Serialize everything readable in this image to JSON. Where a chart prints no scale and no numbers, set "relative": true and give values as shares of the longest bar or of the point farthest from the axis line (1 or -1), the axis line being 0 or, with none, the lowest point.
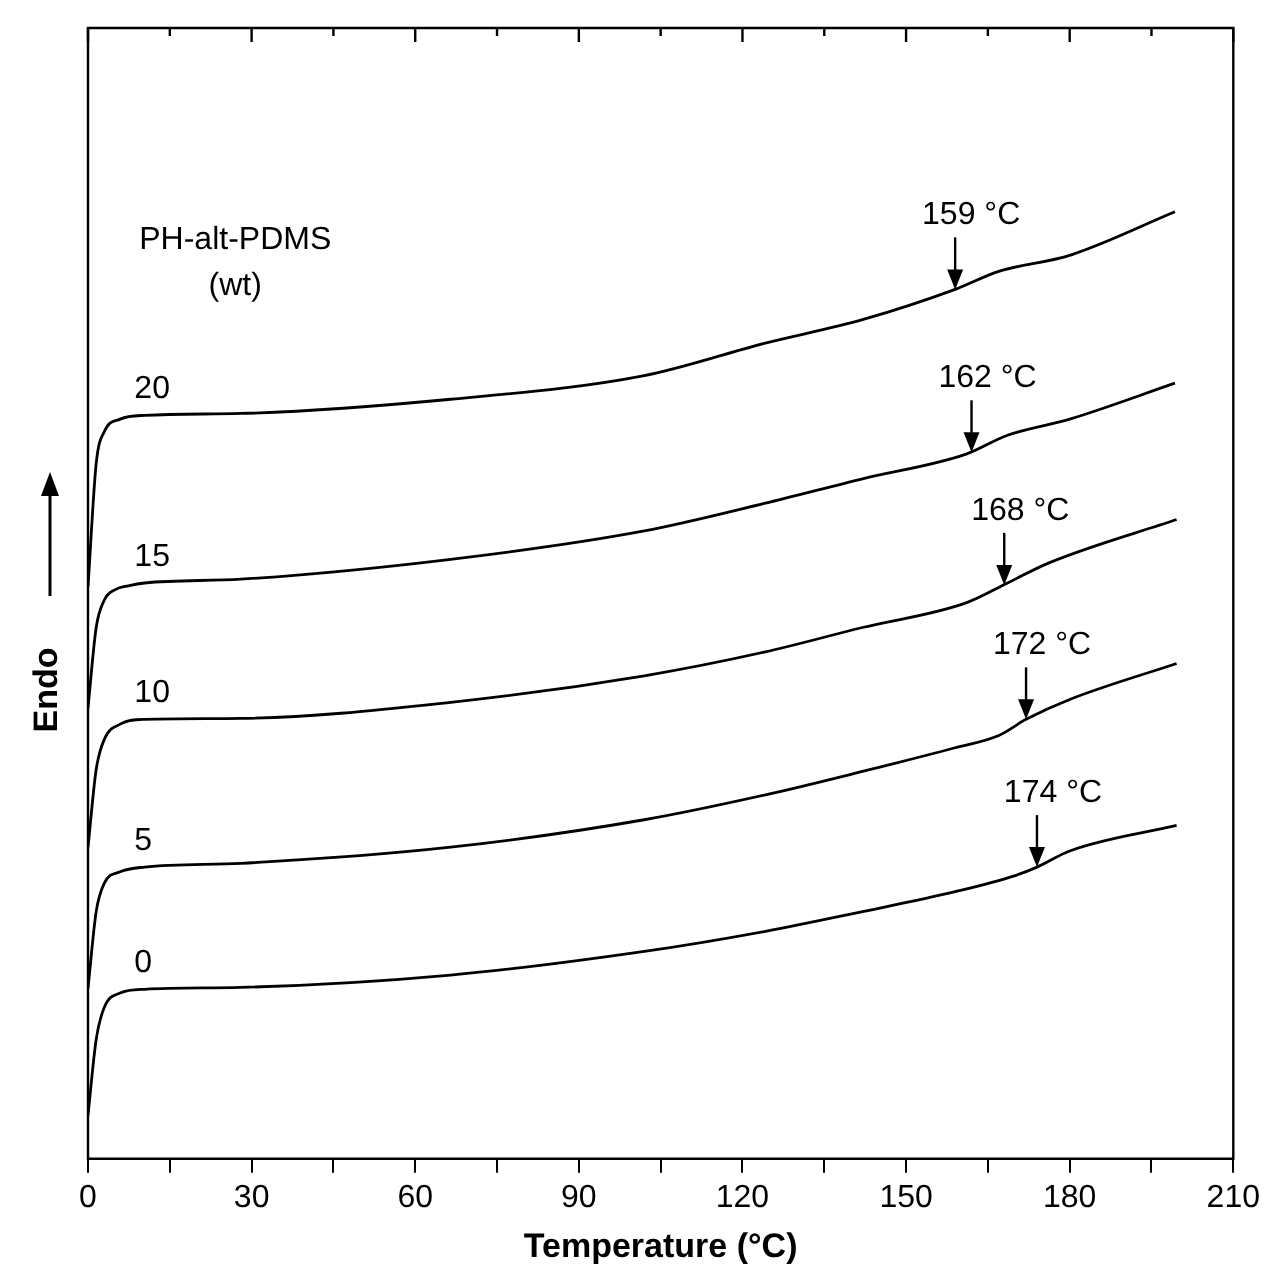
{
  "chart_data": {
    "type": "line",
    "relative": true,
    "xlabel": "Temperature (°C)",
    "ylabel": "Endo",
    "legend_title": "PH-alt-PDMS\n(wt)",
    "xlim": [
      0,
      210
    ],
    "xticks": [
      0,
      {
        "value": 15,
        "label": null
      },
      30,
      {
        "value": 45,
        "label": null
      },
      60,
      {
        "value": 75,
        "label": null
      },
      90,
      {
        "value": 105,
        "label": null
      },
      120,
      {
        "value": 135,
        "label": null
      },
      150,
      {
        "value": 165,
        "label": null
      },
      180,
      {
        "value": 195,
        "label": null
      },
      210
    ],
    "tick_labels": "x",
    "grid": false,
    "legend": false,
    "marker": "none",
    "line_style": "solid",
    "series": [
      {
        "name": "0",
        "color": "#000000",
        "x": [
          0,
          1.5,
          3,
          5.9,
          10.4,
          28,
          66.5,
          102,
          124,
          142,
          159,
          170,
          174,
          180,
          199.6
        ],
        "values": [
          0.046,
          0.126,
          0.16,
          0.175,
          0.179,
          0.181,
          0.194,
          0.219,
          0.24,
          0.261,
          0.282,
          0.299,
          0.308,
          0.325,
          0.352
        ]
      },
      {
        "name": "5",
        "color": "#000000",
        "x": [
          0,
          1.5,
          3,
          5.9,
          10.4,
          28,
          66.5,
          102,
          124,
          142,
          159,
          167,
          172,
          180,
          199.6
        ],
        "values": [
          0.18,
          0.261,
          0.291,
          0.303,
          0.308,
          0.312,
          0.329,
          0.358,
          0.384,
          0.409,
          0.434,
          0.447,
          0.464,
          0.485,
          0.523
        ]
      },
      {
        "name": "10",
        "color": "#000000",
        "x": [
          0,
          1.5,
          3,
          5.9,
          10.4,
          28,
          66.5,
          102,
          124,
          142,
          161,
          168.6,
          176.1,
          199.6
        ],
        "values": [
          0.329,
          0.411,
          0.443,
          0.459,
          0.464,
          0.465,
          0.482,
          0.51,
          0.535,
          0.561,
          0.587,
          0.608,
          0.629,
          0.675
        ]
      },
      {
        "name": "15",
        "color": "#000000",
        "x": [
          0,
          1.5,
          3,
          5,
          7.4,
          10.4,
          28,
          66.5,
          102,
          124,
          142,
          161,
          168.6,
          180,
          199.3
        ],
        "values": [
          0.476,
          0.561,
          0.59,
          0.601,
          0.605,
          0.608,
          0.612,
          0.633,
          0.663,
          0.692,
          0.718,
          0.744,
          0.764,
          0.781,
          0.819
        ]
      },
      {
        "name": "20",
        "color": "#000000",
        "x": [
          0,
          1.5,
          3,
          5.9,
          10.4,
          28,
          66.5,
          102,
          124,
          142,
          159,
          167,
          180,
          199.3
        ],
        "values": [
          0.604,
          0.734,
          0.768,
          0.781,
          0.785,
          0.787,
          0.802,
          0.827,
          0.861,
          0.886,
          0.918,
          0.937,
          0.954,
          1.0
        ]
      }
    ],
    "annotations": [
      {
        "text": "174 °C",
        "x": 174,
        "y": 0.308
      },
      {
        "text": "172 °C",
        "x": 172,
        "y": 0.464
      },
      {
        "text": "168 °C",
        "x": 168,
        "y": 0.606
      },
      {
        "text": "162 °C",
        "x": 162,
        "y": 0.746
      },
      {
        "text": "159 °C",
        "x": 159,
        "y": 0.918
      }
    ]
  }
}
